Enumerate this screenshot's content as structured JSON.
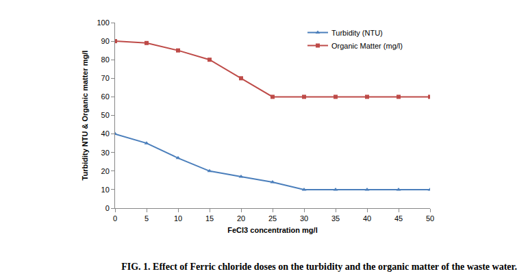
{
  "chart_data": {
    "type": "line",
    "title": "FIG. 1. Effect of Ferric chloride doses on the turbidity and the organic matter of the waste water.",
    "x_label": "FeCl3 concentration mg/l",
    "y_label": "Turbidity NTU & Organic matter mg/l",
    "x": [
      0,
      5,
      10,
      15,
      20,
      25,
      30,
      35,
      40,
      45,
      50
    ],
    "series": [
      {
        "name": "Turbidity (NTU)",
        "color": "#4a7ebb",
        "marker": "triangle-up",
        "values": [
          40,
          35,
          27,
          20,
          17,
          14,
          10,
          10,
          10,
          10,
          10
        ]
      },
      {
        "name": "Organic Matter (mg/l)",
        "color": "#be4b48",
        "marker": "square",
        "values": [
          90,
          89,
          85,
          80,
          70,
          60,
          60,
          60,
          60,
          60,
          60
        ]
      }
    ],
    "xlim": [
      0,
      50
    ],
    "xticks": [
      0,
      5,
      10,
      15,
      20,
      25,
      30,
      35,
      40,
      45,
      50
    ],
    "ylim": [
      0,
      100
    ],
    "yticks": [
      0,
      10,
      20,
      30,
      40,
      50,
      60,
      70,
      80,
      90,
      100
    ],
    "grid": false,
    "legend": "top-right"
  }
}
